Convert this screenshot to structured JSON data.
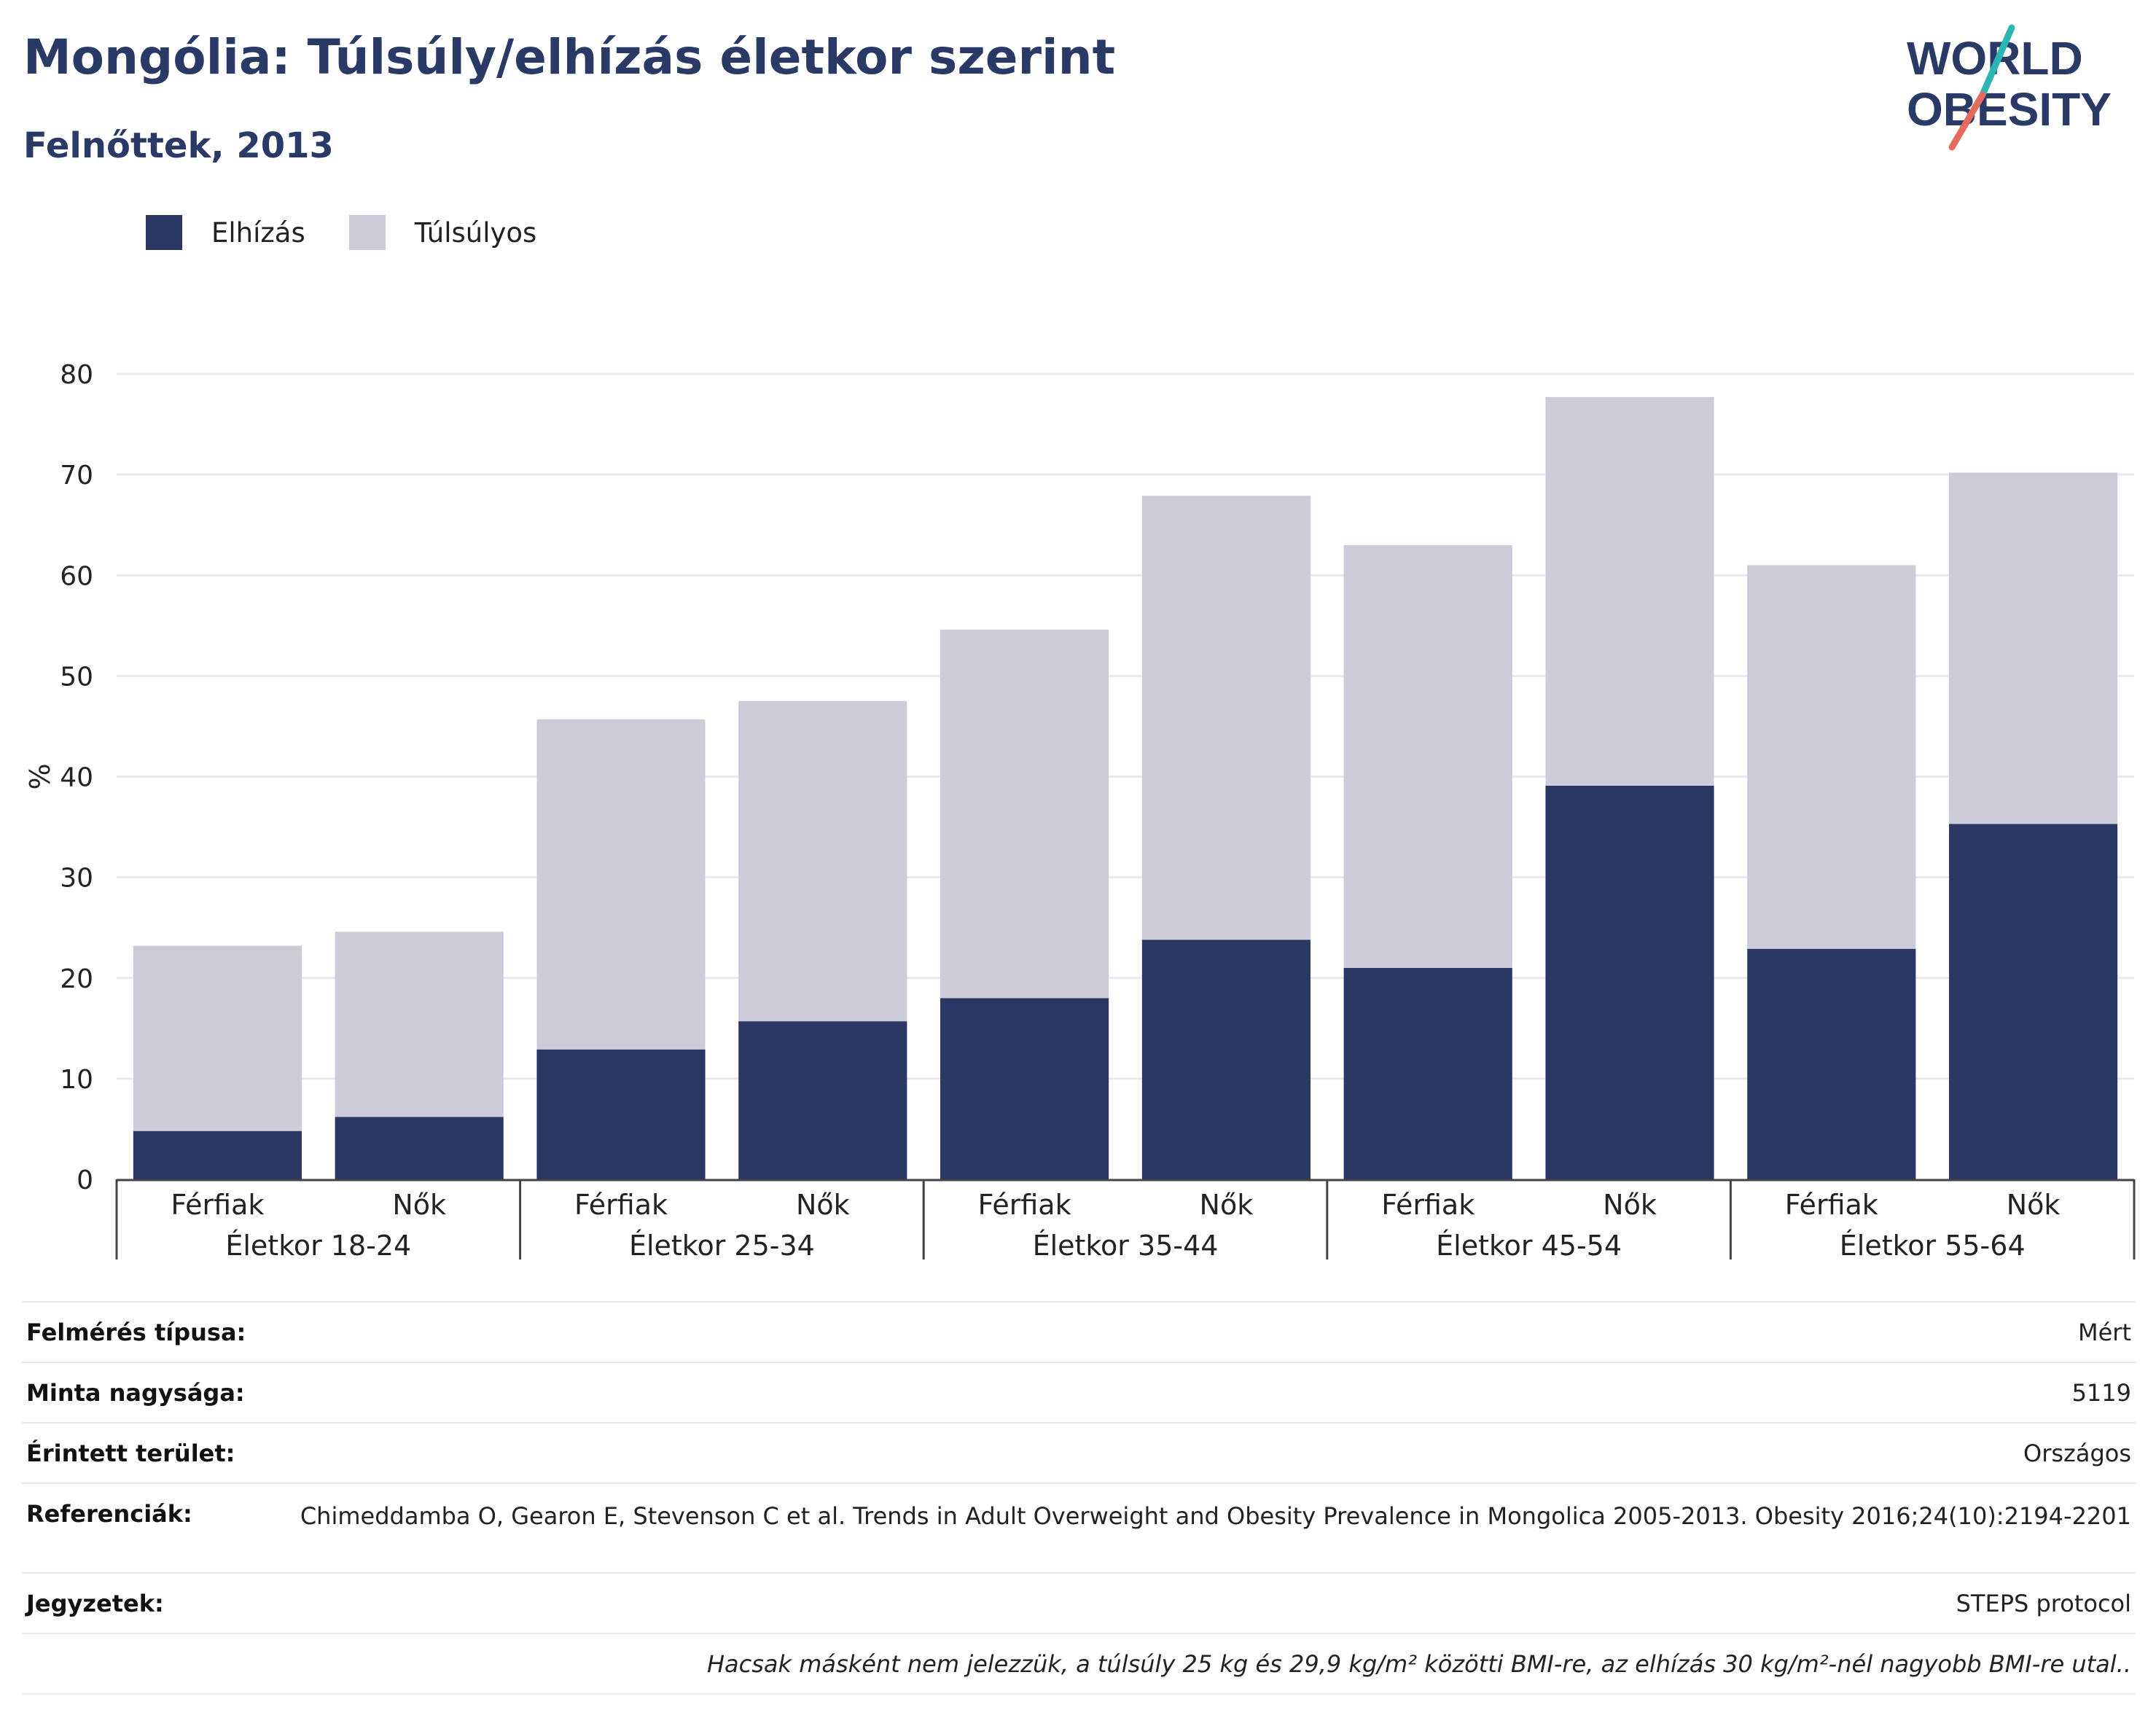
{
  "header": {
    "title": "Mongólia: Túlsúly/elhízás életkor szerint",
    "subtitle": "Felnőttek, 2013"
  },
  "logo": {
    "line1": "WORLD",
    "line2": "OBESITY"
  },
  "legend": [
    {
      "label": "Elhízás",
      "color": "#2a3663"
    },
    {
      "label": "Túlsúlyos",
      "color": "#cbccd8"
    }
  ],
  "chart_data": {
    "type": "bar",
    "stacked": true,
    "ylabel": "%",
    "ylim": [
      0,
      80
    ],
    "yticks": [
      0,
      10,
      20,
      30,
      40,
      50,
      60,
      70,
      80
    ],
    "grid": true,
    "legend_position": "top-left",
    "categories": [
      "Férfiak",
      "Nők",
      "Férfiak",
      "Nők",
      "Férfiak",
      "Nők",
      "Férfiak",
      "Nők",
      "Férfiak",
      "Nők"
    ],
    "groups": [
      "Életkor 18-24",
      "Életkor 25-34",
      "Életkor 35-44",
      "Életkor 45-54",
      "Életkor 55-64"
    ],
    "series": [
      {
        "name": "Elhízás",
        "color": "#2a3663",
        "values": [
          4.8,
          6.2,
          12.9,
          15.7,
          18.0,
          23.8,
          21.0,
          39.1,
          22.9,
          35.3
        ]
      },
      {
        "name": "Túlsúlyos",
        "color": "#cbccd8",
        "values": [
          18.4,
          18.4,
          32.8,
          31.8,
          36.6,
          44.1,
          42.0,
          38.6,
          38.1,
          34.9
        ]
      }
    ]
  },
  "meta": [
    {
      "label": "Felmérés típusa:",
      "value": "Mért"
    },
    {
      "label": "Minta nagysága:",
      "value": "5119"
    },
    {
      "label": "Érintett terület:",
      "value": "Országos"
    },
    {
      "label": "Referenciák:",
      "value": "Chimeddamba O, Gearon E, Stevenson C et al. Trends in Adult Overweight and Obesity Prevalence in Mongolica 2005-2013. Obesity 2016;24(10):2194-2201"
    },
    {
      "label": "Jegyzetek:",
      "value": "STEPS protocol"
    },
    {
      "label": "",
      "value": "Hacsak másként nem jelezzük, a túlsúly 25 kg és 29,9 kg/m² közötti BMI-re, az elhízás 30 kg/m²-nél nagyobb BMI-re utal.."
    }
  ]
}
